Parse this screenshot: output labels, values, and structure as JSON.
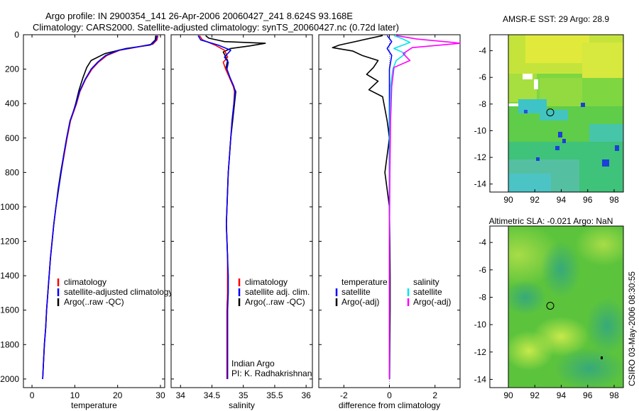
{
  "header": {
    "title_line1": "Argo profile: IN 2900354_141 26-Apr-2006 20060427_241 8.624S 93.168E",
    "title_line2": "Climatology: CARS2000. Satellite-adjusted climatology: synTS_20060427.nc (0.72d later)"
  },
  "colors": {
    "climatology": "#ff0000",
    "satellite": "#0000ff",
    "argo": "#000000",
    "cyan": "#00e5ee",
    "magenta": "#ff00ff",
    "sst_base": "#7dd63a",
    "sst_warm": "#d8e83a",
    "sst_cool": "#33c3b0",
    "sla_base": "#58c040",
    "sla_light": "#b7e04a",
    "sla_dark": "#3aa86e"
  },
  "credit": {
    "line1": "Indian Argo",
    "line2": "PI: K. Radhakrishnan"
  },
  "timestamp": "CSIRO 03-May-2006 08:30:55",
  "chart_data": [
    {
      "type": "line",
      "id": "temperature",
      "xlabel": "temperature",
      "ylabel": "",
      "xlim": [
        -2,
        31
      ],
      "ylim": [
        2050,
        0
      ],
      "xticks": [
        0,
        10,
        20,
        30
      ],
      "xtick_labels": [
        "0",
        "10",
        "20",
        "30"
      ],
      "yticks": [
        0,
        200,
        400,
        600,
        800,
        1000,
        1200,
        1400,
        1600,
        1800,
        2000
      ],
      "ytick_labels": [
        "0",
        "200",
        "400",
        "600",
        "800",
        "1000",
        "1200",
        "1400",
        "1600",
        "1800",
        "2000"
      ],
      "legend": [
        "climatology",
        "satellite-adjusted climatology",
        "Argo(..raw -QC)"
      ],
      "series": [
        {
          "name": "Argo",
          "color": "#000000",
          "points": [
            [
              28.9,
              5
            ],
            [
              28.8,
              30
            ],
            [
              27.6,
              60
            ],
            [
              22,
              80
            ],
            [
              17,
              110
            ],
            [
              13.8,
              150
            ],
            [
              12.8,
              190
            ],
            [
              11.9,
              250
            ],
            [
              11,
              320
            ],
            [
              10.2,
              400
            ],
            [
              9.6,
              450
            ],
            [
              8.9,
              500
            ],
            [
              8.1,
              600
            ],
            [
              7.4,
              700
            ],
            [
              6.7,
              800
            ],
            [
              6.1,
              900
            ],
            [
              5.6,
              1000
            ],
            [
              5.1,
              1100
            ],
            [
              4.7,
              1200
            ],
            [
              4.3,
              1300
            ],
            [
              4.0,
              1400
            ],
            [
              3.7,
              1500
            ],
            [
              3.4,
              1600
            ],
            [
              3.2,
              1700
            ],
            [
              2.9,
              1800
            ],
            [
              2.7,
              1900
            ],
            [
              2.5,
              2000
            ]
          ]
        },
        {
          "name": "climatology",
          "color": "#ff0000",
          "points": [
            [
              29.4,
              5
            ],
            [
              29.2,
              30
            ],
            [
              28.2,
              55
            ],
            [
              25,
              70
            ],
            [
              20.5,
              90
            ],
            [
              17.5,
              120
            ],
            [
              15.5,
              160
            ],
            [
              14,
              200
            ],
            [
              12.5,
              260
            ],
            [
              11.2,
              330
            ],
            [
              10.4,
              400
            ],
            [
              9.7,
              450
            ],
            [
              9.0,
              500
            ],
            [
              8.2,
              600
            ],
            [
              7.5,
              700
            ],
            [
              6.8,
              800
            ],
            [
              6.2,
              900
            ],
            [
              5.6,
              1000
            ],
            [
              5.1,
              1100
            ],
            [
              4.7,
              1200
            ],
            [
              4.3,
              1300
            ],
            [
              4.0,
              1400
            ],
            [
              3.7,
              1500
            ],
            [
              3.4,
              1600
            ],
            [
              3.2,
              1700
            ],
            [
              2.9,
              1800
            ],
            [
              2.7,
              1900
            ],
            [
              2.5,
              2000
            ]
          ]
        },
        {
          "name": "satellite-adjusted climatology",
          "color": "#0000ff",
          "points": [
            [
              29.2,
              5
            ],
            [
              29,
              30
            ],
            [
              28,
              55
            ],
            [
              24.8,
              70
            ],
            [
              20.2,
              90
            ],
            [
              17.2,
              120
            ],
            [
              15.3,
              160
            ],
            [
              13.8,
              200
            ],
            [
              12.4,
              260
            ],
            [
              11.1,
              330
            ],
            [
              10.3,
              400
            ],
            [
              9.6,
              450
            ],
            [
              8.9,
              500
            ],
            [
              8.1,
              600
            ],
            [
              7.4,
              700
            ],
            [
              6.8,
              800
            ],
            [
              6.2,
              900
            ],
            [
              5.6,
              1000
            ],
            [
              5.1,
              1100
            ],
            [
              4.7,
              1200
            ],
            [
              4.3,
              1300
            ],
            [
              4.0,
              1400
            ],
            [
              3.7,
              1500
            ],
            [
              3.4,
              1600
            ],
            [
              3.2,
              1700
            ],
            [
              2.9,
              1800
            ],
            [
              2.7,
              1900
            ],
            [
              2.5,
              2000
            ]
          ]
        }
      ]
    },
    {
      "type": "line",
      "id": "salinity",
      "xlabel": "salinity",
      "xlim": [
        33.85,
        36.1
      ],
      "ylim": [
        2050,
        0
      ],
      "xticks": [
        34,
        34.5,
        35,
        35.5,
        36
      ],
      "xtick_labels": [
        "34",
        "34.5",
        "35",
        "35.5",
        "36"
      ],
      "legend": [
        "climatology",
        "satellite adj. clim.",
        "Argo(..raw -QC)"
      ],
      "series": [
        {
          "name": "Argo",
          "color": "#000000",
          "points": [
            [
              34.4,
              5
            ],
            [
              34.45,
              20
            ],
            [
              34.7,
              40
            ],
            [
              35.35,
              50
            ],
            [
              35.1,
              65
            ],
            [
              34.8,
              80
            ],
            [
              34.68,
              100
            ],
            [
              34.75,
              150
            ],
            [
              34.72,
              200
            ],
            [
              34.78,
              250
            ],
            [
              34.84,
              300
            ],
            [
              34.88,
              330
            ],
            [
              34.86,
              400
            ],
            [
              34.83,
              500
            ],
            [
              34.8,
              600
            ],
            [
              34.78,
              700
            ],
            [
              34.76,
              800
            ],
            [
              34.75,
              900
            ],
            [
              34.74,
              1000
            ],
            [
              34.73,
              1100
            ],
            [
              34.74,
              1200
            ],
            [
              34.75,
              1300
            ],
            [
              34.75,
              1400
            ],
            [
              34.75,
              1500
            ],
            [
              34.74,
              1600
            ],
            [
              34.74,
              1800
            ],
            [
              34.74,
              2000
            ]
          ]
        },
        {
          "name": "climatology",
          "color": "#ff0000",
          "points": [
            [
              34.3,
              5
            ],
            [
              34.35,
              30
            ],
            [
              34.55,
              60
            ],
            [
              34.7,
              90
            ],
            [
              34.75,
              130
            ],
            [
              34.68,
              160
            ],
            [
              34.72,
              200
            ],
            [
              34.78,
              250
            ],
            [
              34.84,
              300
            ],
            [
              34.86,
              330
            ],
            [
              34.85,
              400
            ],
            [
              34.82,
              500
            ],
            [
              34.8,
              600
            ],
            [
              34.78,
              700
            ],
            [
              34.76,
              800
            ],
            [
              34.75,
              900
            ],
            [
              34.74,
              1000
            ],
            [
              34.73,
              1100
            ],
            [
              34.74,
              1200
            ],
            [
              34.75,
              1300
            ],
            [
              34.75,
              1400
            ],
            [
              34.75,
              1500
            ],
            [
              34.74,
              1600
            ],
            [
              34.74,
              1800
            ],
            [
              34.74,
              2000
            ]
          ]
        },
        {
          "name": "satellite adj. clim.",
          "color": "#0000ff",
          "points": [
            [
              34.28,
              5
            ],
            [
              34.32,
              30
            ],
            [
              34.6,
              60
            ],
            [
              34.8,
              90
            ],
            [
              34.7,
              130
            ],
            [
              34.76,
              160
            ],
            [
              34.74,
              200
            ],
            [
              34.79,
              250
            ],
            [
              34.85,
              300
            ],
            [
              34.87,
              330
            ],
            [
              34.85,
              400
            ],
            [
              34.82,
              500
            ],
            [
              34.8,
              600
            ],
            [
              34.78,
              700
            ],
            [
              34.76,
              800
            ],
            [
              34.75,
              900
            ],
            [
              34.74,
              1000
            ],
            [
              34.73,
              1100
            ],
            [
              34.74,
              1200
            ],
            [
              34.75,
              1300
            ],
            [
              34.76,
              1400
            ],
            [
              34.76,
              1500
            ],
            [
              34.75,
              1600
            ],
            [
              34.75,
              1800
            ],
            [
              34.75,
              2000
            ]
          ]
        }
      ]
    },
    {
      "type": "line",
      "id": "difference",
      "xlabel": "difference from climatology",
      "xlim": [
        -3.1,
        3.1
      ],
      "ylim": [
        2050,
        0
      ],
      "xticks": [
        -2,
        0,
        2
      ],
      "xtick_labels": [
        "-2",
        "0",
        "2"
      ],
      "legend_left_title": "temperature",
      "legend_right_title": "salinity",
      "legend_left": [
        "satellite",
        "Argo(-adj)"
      ],
      "legend_right": [
        "satellite",
        "Argo(-adj)"
      ],
      "series": [
        {
          "name": "temperature Argo(-adj)",
          "color": "#000000",
          "points": [
            [
              -0.3,
              5
            ],
            [
              -2.2,
              60
            ],
            [
              -2.5,
              75
            ],
            [
              -1.6,
              95
            ],
            [
              -1.2,
              120
            ],
            [
              -0.5,
              150
            ],
            [
              -0.7,
              190
            ],
            [
              -1.0,
              230
            ],
            [
              -0.5,
              270
            ],
            [
              -0.9,
              320
            ],
            [
              -0.3,
              360
            ],
            [
              -0.2,
              430
            ],
            [
              -0.1,
              500
            ],
            [
              0,
              600
            ],
            [
              -0.1,
              700
            ],
            [
              -0.2,
              800
            ],
            [
              -0.1,
              900
            ],
            [
              0,
              1000
            ],
            [
              0.02,
              1200
            ],
            [
              0.03,
              1400
            ],
            [
              0.03,
              1600
            ],
            [
              0.02,
              1800
            ],
            [
              0.01,
              2000
            ]
          ]
        },
        {
          "name": "temperature satellite",
          "color": "#0000ff",
          "points": [
            [
              -0.1,
              5
            ],
            [
              0.1,
              40
            ],
            [
              -0.1,
              80
            ],
            [
              0.1,
              120
            ],
            [
              0,
              200
            ],
            [
              0,
              400
            ],
            [
              0,
              800
            ],
            [
              0,
              1200
            ],
            [
              0,
              1600
            ],
            [
              0,
              2000
            ]
          ]
        },
        {
          "name": "salinity satellite",
          "color": "#00e5ee",
          "points": [
            [
              0.2,
              5
            ],
            [
              0.6,
              25
            ],
            [
              0.9,
              45
            ],
            [
              0.2,
              80
            ],
            [
              0.7,
              110
            ],
            [
              0.3,
              150
            ],
            [
              0.15,
              200
            ],
            [
              0.05,
              300
            ],
            [
              0.02,
              500
            ],
            [
              0.01,
              800
            ],
            [
              0,
              1200
            ],
            [
              0,
              1600
            ],
            [
              0,
              2000
            ]
          ]
        },
        {
          "name": "salinity Argo(-adj)",
          "color": "#ff00ff",
          "points": [
            [
              0.3,
              5
            ],
            [
              1.2,
              25
            ],
            [
              2.8,
              45
            ],
            [
              3.1,
              50
            ],
            [
              1.0,
              75
            ],
            [
              0.6,
              110
            ],
            [
              0.9,
              150
            ],
            [
              0.2,
              190
            ],
            [
              0.1,
              300
            ],
            [
              0.05,
              500
            ],
            [
              0.02,
              800
            ],
            [
              0,
              1200
            ],
            [
              0,
              1600
            ],
            [
              0,
              2000
            ]
          ]
        }
      ]
    },
    {
      "type": "heatmap",
      "id": "sst_map",
      "title": "AMSR-E SST: 29 Argo: 28.9",
      "xlim": [
        88.6,
        98.7
      ],
      "ylim": [
        -14.6,
        -2.8
      ],
      "data_xmin": 90,
      "xticks": [
        90,
        92,
        94,
        96,
        98
      ],
      "yticks": [
        -4,
        -6,
        -8,
        -10,
        -12,
        -14
      ],
      "argo_position": [
        93.168,
        -8.624
      ]
    },
    {
      "type": "heatmap",
      "id": "sla_map",
      "title": "Altimetric SLA: -0.021 Argo: NaN",
      "xlim": [
        88.6,
        98.7
      ],
      "ylim": [
        -14.6,
        -2.8
      ],
      "data_xmin": 90,
      "xticks": [
        90,
        92,
        94,
        96,
        98
      ],
      "yticks": [
        -4,
        -6,
        -8,
        -10,
        -12,
        -14
      ],
      "argo_position": [
        93.168,
        -8.624
      ]
    }
  ]
}
